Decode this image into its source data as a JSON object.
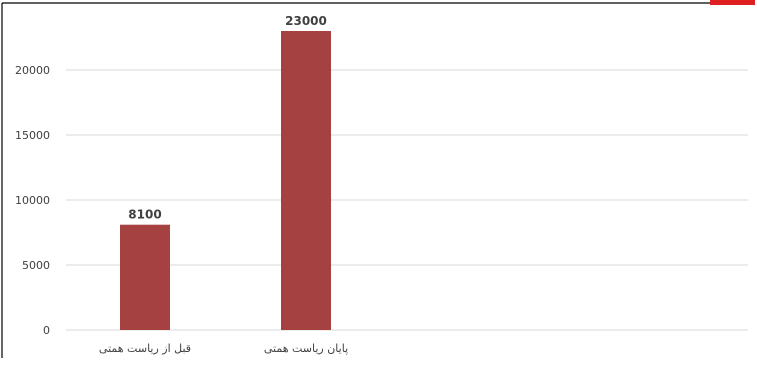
{
  "chart_data": {
    "type": "bar",
    "categories": [
      "قبل از ریاست همتی",
      "پایان ریاست همتی"
    ],
    "values": [
      8100,
      23000
    ],
    "data_labels": [
      "8100",
      "23000"
    ],
    "ylim": [
      0,
      25000
    ],
    "yticks": [
      0,
      5000,
      10000,
      15000,
      20000
    ],
    "ytick_labels": [
      "0",
      "5000",
      "10000",
      "15000",
      "20000"
    ],
    "grid": true,
    "legend": "none",
    "title": "",
    "xlabel": "",
    "ylabel": ""
  },
  "colors": {
    "bar": "#A64141",
    "grid": "#D9D9D9",
    "text": "#404040",
    "accent_corner": "#E02020",
    "frame": "#000000"
  }
}
